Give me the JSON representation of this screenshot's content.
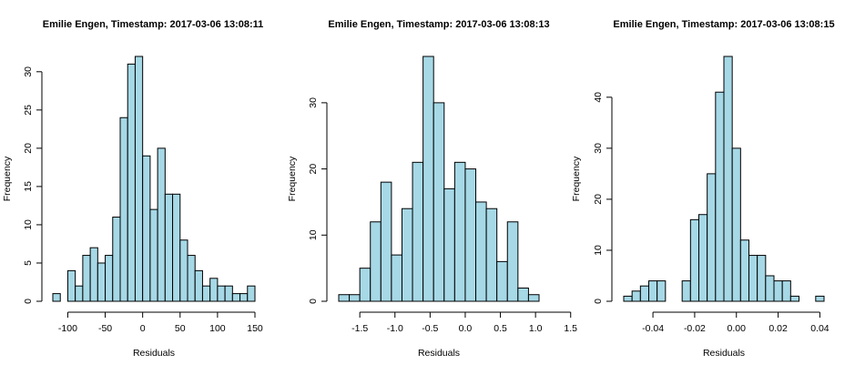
{
  "chart_data": [
    {
      "type": "bar",
      "title": "Emilie Engen, Timestamp: 2017-03-06 13:08:11",
      "xlabel": "Residuals",
      "ylabel": "Frequency",
      "bar_color": "#a6d8e6",
      "edge_color": "#000000",
      "bin_start": -120,
      "bin_width": 10,
      "values": [
        1,
        0,
        4,
        2,
        6,
        7,
        5,
        6,
        11,
        24,
        31,
        32,
        19,
        12,
        20,
        14,
        14,
        8,
        6,
        4,
        2,
        3,
        2,
        2,
        1,
        1,
        2
      ],
      "xlim": [
        -120,
        150
      ],
      "ylim": [
        0,
        32
      ],
      "x_ticks": [
        -100,
        -50,
        0,
        50,
        100,
        150
      ],
      "x_tick_labels": [
        "-100",
        "-50",
        "0",
        "50",
        "100",
        "150"
      ],
      "y_ticks": [
        0,
        5,
        10,
        15,
        20,
        25,
        30
      ],
      "y_tick_labels": [
        "0",
        "5",
        "10",
        "15",
        "20",
        "25",
        "30"
      ]
    },
    {
      "type": "bar",
      "title": "Emilie Engen, Timestamp: 2017-03-06 13:08:13",
      "xlabel": "Residuals",
      "ylabel": "Frequency",
      "bar_color": "#a6d8e6",
      "edge_color": "#000000",
      "bin_start": -1.8,
      "bin_width": 0.15,
      "values": [
        1,
        1,
        5,
        12,
        18,
        7,
        14,
        21,
        37,
        30,
        17,
        21,
        20,
        15,
        14,
        6,
        12,
        2,
        1
      ],
      "xlim": [
        -1.8,
        1.05
      ],
      "ylim": [
        0,
        37
      ],
      "x_ticks": [
        -1.5,
        -1.0,
        -0.5,
        0.0,
        0.5,
        1.0,
        1.5
      ],
      "x_tick_labels": [
        "-1.5",
        "-1.0",
        "-0.5",
        "0.0",
        "0.5",
        "1.0",
        "1.5"
      ],
      "y_ticks": [
        0,
        10,
        20,
        30
      ],
      "y_tick_labels": [
        "0",
        "10",
        "20",
        "30"
      ]
    },
    {
      "type": "bar",
      "title": "Emilie Engen, Timestamp: 2017-03-06 13:08:15",
      "xlabel": "Residuals",
      "ylabel": "Frequency",
      "bar_color": "#a6d8e6",
      "edge_color": "#000000",
      "bin_start": -0.054,
      "bin_width": 0.004,
      "values": [
        1,
        2,
        3,
        4,
        4,
        0,
        0,
        4,
        16,
        17,
        25,
        41,
        48,
        30,
        12,
        9,
        9,
        5,
        4,
        4,
        1,
        0,
        0,
        1
      ],
      "xlim": [
        -0.054,
        0.042
      ],
      "ylim": [
        0,
        48
      ],
      "x_ticks": [
        -0.04,
        -0.02,
        0.0,
        0.02,
        0.04
      ],
      "x_tick_labels": [
        "-0.04",
        "-0.02",
        "0.00",
        "0.02",
        "0.04"
      ],
      "y_ticks": [
        0,
        10,
        20,
        30,
        40
      ],
      "y_tick_labels": [
        "0",
        "10",
        "20",
        "30",
        "40"
      ]
    }
  ]
}
